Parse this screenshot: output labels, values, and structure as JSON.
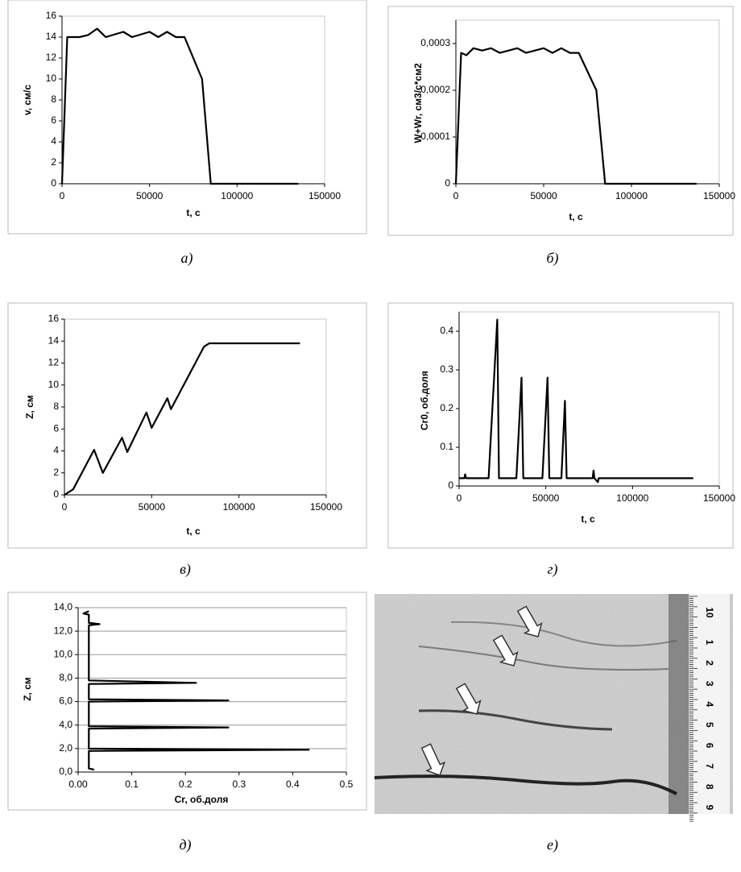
{
  "chart_data": [
    {
      "type": "line",
      "caption": "а)",
      "ylabel": "v, см/с",
      "xlabel": "t, с",
      "color": "#000000",
      "x": [
        0,
        3000,
        10000,
        15000,
        20000,
        25000,
        35000,
        40000,
        50000,
        55000,
        60000,
        65000,
        70000,
        80000,
        85000,
        135000
      ],
      "values": [
        0,
        14,
        14,
        14.2,
        14.8,
        14,
        14.5,
        14,
        14.5,
        14,
        14.5,
        14,
        14,
        10,
        0,
        0
      ],
      "xlim": [
        0,
        150000
      ],
      "ylim": [
        0,
        16
      ],
      "xticks": [
        0,
        50000,
        100000,
        150000
      ],
      "yticks": [
        0,
        2,
        4,
        6,
        8,
        10,
        12,
        14,
        16
      ],
      "grid": false
    },
    {
      "type": "line",
      "caption": "б)",
      "ylabel": "W+Wr, см3/с*см2",
      "xlabel": "t, с",
      "color": "#000000",
      "x": [
        0,
        3000,
        6000,
        10000,
        15000,
        20000,
        25000,
        35000,
        40000,
        50000,
        55000,
        60000,
        65000,
        70000,
        80000,
        85000,
        137000
      ],
      "values": [
        0,
        0.00028,
        0.000275,
        0.00029,
        0.000285,
        0.00029,
        0.00028,
        0.00029,
        0.00028,
        0.00029,
        0.00028,
        0.00029,
        0.00028,
        0.00028,
        0.0002,
        0,
        0
      ],
      "xlim": [
        0,
        150000
      ],
      "ylim": [
        0,
        0.00035
      ],
      "xticks": [
        0,
        50000,
        100000,
        150000
      ],
      "yticks": [
        0,
        {
          "value": 0.0001,
          "label": "0,0001"
        },
        {
          "value": 0.0002,
          "label": "0,0002"
        },
        {
          "value": 0.0003,
          "label": "0,0003"
        }
      ],
      "grid": false
    },
    {
      "type": "line",
      "caption": "в)",
      "ylabel": "Z, см",
      "xlabel": "t, с",
      "color": "#000000",
      "x": [
        0,
        5000,
        17000,
        22000,
        33000,
        36000,
        47000,
        50000,
        59000,
        61000,
        80000,
        83000,
        135000
      ],
      "values": [
        0,
        0.5,
        4.1,
        2,
        5.2,
        3.9,
        7.5,
        6.1,
        8.8,
        7.8,
        13.5,
        13.8,
        13.8
      ],
      "xlim": [
        0,
        150000
      ],
      "ylim": [
        0,
        16
      ],
      "xticks": [
        0,
        50000,
        100000,
        150000
      ],
      "yticks": [
        0,
        2,
        4,
        6,
        8,
        10,
        12,
        14,
        16
      ],
      "grid": false
    },
    {
      "type": "line",
      "caption": "г)",
      "ylabel": "Cr0, об.доля",
      "xlabel": "t, с",
      "color": "#000000",
      "x": [
        0,
        3000,
        3500,
        4000,
        17000,
        22000,
        23000,
        33000,
        36000,
        37000,
        48000,
        51000,
        52000,
        59000,
        61000,
        62000,
        77000,
        77500,
        78000,
        80000,
        80500,
        135000
      ],
      "values": [
        0.02,
        0.02,
        0.03,
        0.02,
        0.02,
        0.43,
        0.02,
        0.02,
        0.28,
        0.02,
        0.02,
        0.28,
        0.02,
        0.02,
        0.22,
        0.02,
        0.02,
        0.04,
        0.02,
        0.01,
        0.02,
        0.02
      ],
      "xlim": [
        0,
        150000
      ],
      "ylim": [
        0,
        0.45
      ],
      "xticks": [
        0,
        50000,
        100000,
        150000
      ],
      "yticks": [
        0,
        0.1,
        0.2,
        0.3,
        0.4
      ],
      "grid": false
    },
    {
      "type": "line",
      "caption": "д)",
      "ylabel": "Z, см",
      "xlabel": "Cr, об.доля",
      "color": "#000000",
      "x": [
        0.03,
        0.02,
        0.02,
        0.43,
        0.02,
        0.02,
        0.28,
        0.02,
        0.02,
        0.28,
        0.02,
        0.02,
        0.22,
        0.02,
        0.02,
        0.04,
        0.02,
        0.02,
        0.01,
        0.02
      ],
      "values": [
        0.2,
        0.3,
        1.8,
        1.9,
        2.0,
        3.7,
        3.8,
        3.9,
        6.0,
        6.1,
        6.2,
        7.5,
        7.6,
        7.8,
        12.5,
        12.6,
        12.7,
        13.4,
        13.5,
        13.7
      ],
      "xlim": [
        0,
        0.5
      ],
      "ylim": [
        0,
        14
      ],
      "xticks": [
        {
          "value": 0,
          "label": "0.00"
        },
        0.1,
        0.2,
        0.3,
        0.4,
        0.5
      ],
      "yticks": [
        {
          "value": 0,
          "label": "0,0"
        },
        {
          "value": 2,
          "label": "2,0"
        },
        {
          "value": 4,
          "label": "4,0"
        },
        {
          "value": 6,
          "label": "6,0"
        },
        {
          "value": 8,
          "label": "8,0"
        },
        {
          "value": 10,
          "label": "10,0"
        },
        {
          "value": 12,
          "label": "12,0"
        },
        {
          "value": 14,
          "label": "14,0"
        }
      ],
      "grid": true
    }
  ],
  "photo": {
    "caption": "е)",
    "ruler_labels": [
      "10",
      "1",
      "2",
      "3",
      "4",
      "5",
      "6",
      "7",
      "8",
      "9"
    ]
  }
}
